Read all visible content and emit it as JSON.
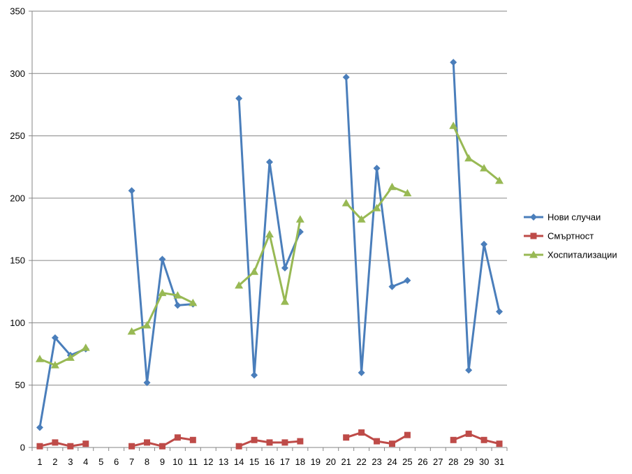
{
  "chart_data": {
    "type": "line",
    "categories": [
      "1",
      "2",
      "3",
      "4",
      "5",
      "6",
      "7",
      "8",
      "9",
      "10",
      "11",
      "12",
      "13",
      "14",
      "15",
      "16",
      "17",
      "18",
      "19",
      "20",
      "21",
      "22",
      "23",
      "24",
      "25",
      "26",
      "27",
      "28",
      "29",
      "30",
      "31"
    ],
    "ylim": [
      0,
      350
    ],
    "yticks": [
      0,
      50,
      100,
      150,
      200,
      250,
      300,
      350
    ],
    "grid": true,
    "legend_position": "right",
    "series": [
      {
        "name": "Нови случаи",
        "color": "#4a7ebb",
        "marker": "diamond",
        "values": [
          16,
          88,
          74,
          79,
          null,
          null,
          206,
          52,
          151,
          114,
          115,
          null,
          null,
          280,
          58,
          229,
          144,
          173,
          null,
          null,
          297,
          60,
          224,
          129,
          134,
          null,
          null,
          309,
          62,
          163,
          109
        ]
      },
      {
        "name": "Смъртност",
        "color": "#be4b48",
        "marker": "square",
        "values": [
          1,
          4,
          1,
          3,
          null,
          null,
          1,
          4,
          1,
          8,
          6,
          null,
          null,
          1,
          6,
          4,
          4,
          5,
          null,
          null,
          8,
          12,
          5,
          3,
          10,
          null,
          null,
          6,
          11,
          6,
          3
        ]
      },
      {
        "name": "Хоспитализации",
        "color": "#98b954",
        "marker": "triangle",
        "values": [
          71,
          66,
          72,
          80,
          null,
          null,
          93,
          98,
          124,
          122,
          116,
          null,
          null,
          130,
          141,
          171,
          117,
          183,
          null,
          null,
          196,
          183,
          192,
          209,
          204,
          null,
          null,
          258,
          232,
          224,
          214
        ]
      }
    ]
  }
}
